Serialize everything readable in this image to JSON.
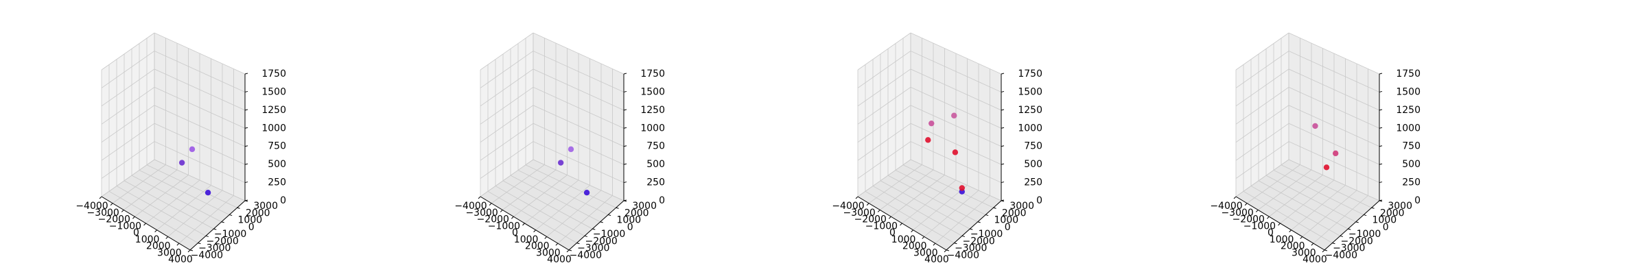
{
  "chart_data": [
    {
      "type": "scatter",
      "projection": "3d",
      "title": "",
      "xlabel": "",
      "ylabel": "",
      "zlabel": "",
      "xlim": [
        -4000,
        4000
      ],
      "ylim": [
        -4000,
        3000
      ],
      "zlim": [
        0,
        1750
      ],
      "xticks": [
        "−4000",
        "−3000",
        "−2000",
        "−1000",
        "0",
        "1000",
        "2000",
        "3000",
        "4000"
      ],
      "yticks": [
        "−4000",
        "−3000",
        "−2000",
        "−1000",
        "0",
        "1000",
        "2000",
        "3000"
      ],
      "zticks": [
        "0",
        "250",
        "500",
        "750",
        "1000",
        "1250",
        "1500",
        "1750"
      ],
      "grid": true,
      "points": [
        {
          "x": -900,
          "y": 2000,
          "z": 250,
          "color": "#6a2fd0"
        },
        {
          "x": 0,
          "y": 2000,
          "z": 500,
          "color": "#9b58e6"
        },
        {
          "x": 1400,
          "y": 2000,
          "z": 0,
          "color": "#3b10d8"
        }
      ]
    },
    {
      "type": "scatter",
      "projection": "3d",
      "title": "",
      "xlabel": "",
      "ylabel": "",
      "zlabel": "",
      "xlim": [
        -4000,
        4000
      ],
      "ylim": [
        -4000,
        3000
      ],
      "zlim": [
        0,
        1750
      ],
      "xticks": [
        "−4000",
        "−3000",
        "−2000",
        "−1000",
        "0",
        "1000",
        "2000",
        "3000",
        "4000"
      ],
      "yticks": [
        "−4000",
        "−3000",
        "−2000",
        "−1000",
        "0",
        "1000",
        "2000",
        "3000"
      ],
      "zticks": [
        "0",
        "250",
        "500",
        "750",
        "1000",
        "1250",
        "1500",
        "1750"
      ],
      "grid": true,
      "points": [
        {
          "x": -900,
          "y": 2000,
          "z": 250,
          "color": "#6a2fd0"
        },
        {
          "x": 0,
          "y": 2000,
          "z": 500,
          "color": "#a062e6"
        },
        {
          "x": 1400,
          "y": 2000,
          "z": 0,
          "color": "#3b10d8"
        }
      ]
    },
    {
      "type": "scatter",
      "projection": "3d",
      "title": "",
      "xlabel": "",
      "ylabel": "",
      "zlabel": "",
      "xlim": [
        -4000,
        4000
      ],
      "ylim": [
        -4000,
        3000
      ],
      "zlim": [
        0,
        1750
      ],
      "xticks": [
        "−4000",
        "−3000",
        "−2000",
        "−1000",
        "0",
        "1000",
        "2000",
        "3000",
        "4000"
      ],
      "yticks": [
        "−4000",
        "−3000",
        "−2000",
        "−1000",
        "0",
        "1000",
        "2000",
        "3000"
      ],
      "zticks": [
        "0",
        "250",
        "500",
        "750",
        "1000",
        "1250",
        "1500",
        "1750"
      ],
      "grid": true,
      "points": [
        {
          "x": -1500,
          "y": 2000,
          "z": 750,
          "color": "#c9509a"
        },
        {
          "x": -1800,
          "y": 2000,
          "z": 500,
          "color": "#e0102e"
        },
        {
          "x": 500,
          "y": 2000,
          "z": 1000,
          "color": "#c95a9e"
        },
        {
          "x": 600,
          "y": 2000,
          "z": 500,
          "color": "#e0102e"
        },
        {
          "x": 1200,
          "y": 2000,
          "z": 0,
          "color": "#3b10d8"
        },
        {
          "x": 1200,
          "y": 2000,
          "z": 50,
          "color": "#e0102e"
        }
      ]
    },
    {
      "type": "scatter",
      "projection": "3d",
      "title": "",
      "xlabel": "",
      "ylabel": "",
      "zlabel": "",
      "xlim": [
        -4000,
        4000
      ],
      "ylim": [
        -4000,
        3000
      ],
      "zlim": [
        0,
        1750
      ],
      "xticks": [
        "−4000",
        "−3000",
        "−2000",
        "−1000",
        "0",
        "1000",
        "2000",
        "3000",
        "4000"
      ],
      "yticks": [
        "−4000",
        "−3000",
        "−2000",
        "−1000",
        "0",
        "1000",
        "2000",
        "3000"
      ],
      "zticks": [
        "0",
        "250",
        "500",
        "750",
        "1000",
        "1250",
        "1500",
        "1750"
      ],
      "grid": true,
      "points": [
        {
          "x": -1000,
          "y": 2000,
          "z": 750,
          "color": "#c9509a"
        },
        {
          "x": 0,
          "y": 2000,
          "z": 250,
          "color": "#e0102e"
        },
        {
          "x": 800,
          "y": 2000,
          "z": 500,
          "color": "#d03a7a"
        }
      ]
    }
  ]
}
